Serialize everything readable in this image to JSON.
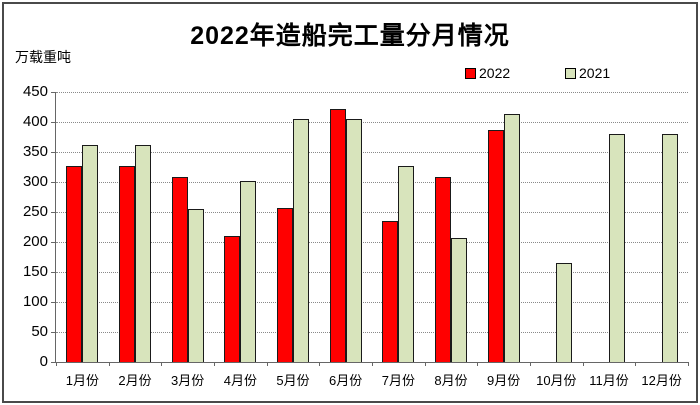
{
  "title": "2022年造船完工量分月情况",
  "unit_label": "万载重吨",
  "colors": {
    "series_2022": "#ff0000",
    "series_2021": "#d8e4bc",
    "grid": "#8a8a8a",
    "axis": "#666666",
    "bar_border": "#1a1a1a",
    "frame_border": "#4a4a4a"
  },
  "chart_data": {
    "type": "bar",
    "categories": [
      "1月份",
      "2月份",
      "3月份",
      "4月份",
      "5月份",
      "6月份",
      "7月份",
      "8月份",
      "9月份",
      "10月份",
      "11月份",
      "12月份"
    ],
    "series": [
      {
        "name": "2022",
        "color": "#ff0000",
        "values": [
          327,
          327,
          309,
          210,
          256,
          422,
          235,
          308,
          386,
          null,
          null,
          null
        ]
      },
      {
        "name": "2021",
        "color": "#d8e4bc",
        "values": [
          361,
          361,
          255,
          302,
          405,
          405,
          327,
          207,
          414,
          165,
          380,
          380
        ]
      }
    ],
    "title": "2022年造船完工量分月情况",
    "xlabel": "",
    "ylabel": "万载重吨",
    "ylim": [
      0,
      450
    ],
    "yticks": [
      0,
      50,
      100,
      150,
      200,
      250,
      300,
      350,
      400,
      450
    ],
    "grid": "horizontal-dotted",
    "legend_position": "top-right"
  }
}
